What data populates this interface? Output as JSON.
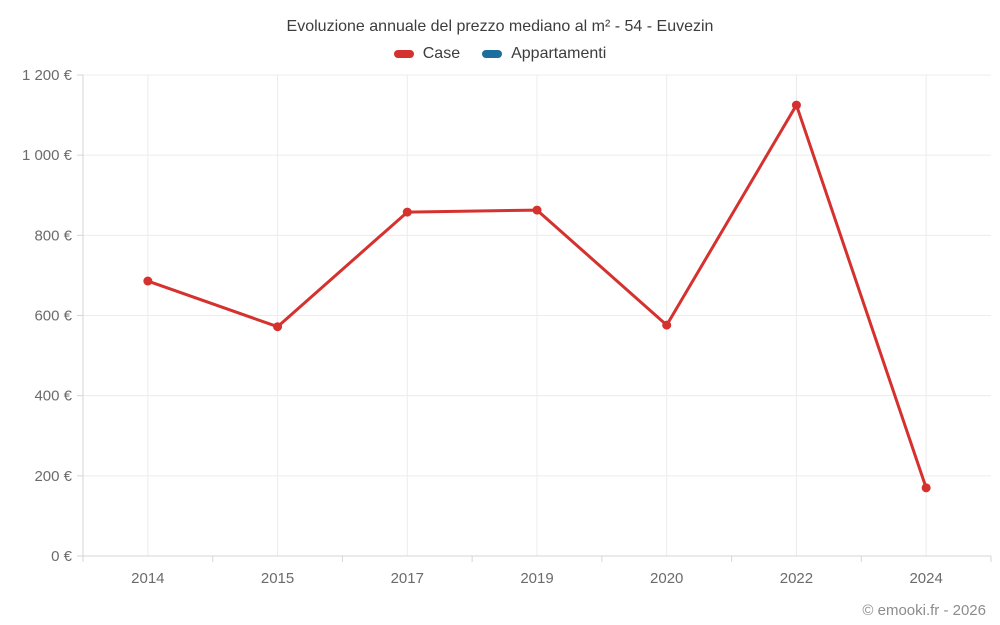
{
  "chart_data": {
    "type": "line",
    "title": "Evoluzione annuale del prezzo mediano al m² - 54 - Euvezin",
    "categories": [
      "2014",
      "2015",
      "2017",
      "2019",
      "2020",
      "2022",
      "2024"
    ],
    "series": [
      {
        "name": "Case",
        "color": "#d5312e",
        "values": [
          686,
          572,
          858,
          863,
          576,
          1125,
          170
        ]
      },
      {
        "name": "Appartamenti",
        "color": "#1c6e9c",
        "values": []
      }
    ],
    "xlabel": "",
    "ylabel": "",
    "ylim": [
      0,
      1200
    ],
    "y_tick_step": 200,
    "y_tick_labels": [
      "0 €",
      "200 €",
      "400 €",
      "600 €",
      "800 €",
      "1 000 €",
      "1 200 €"
    ],
    "grid": true,
    "legend_position": "top",
    "marker": "circle"
  },
  "footer": {
    "text": "© emooki.fr - 2026"
  },
  "colors": {
    "grid": "#ececec",
    "axis": "#d4d4d4",
    "tick": "#d6d6d6",
    "axis_label": "#6b6b6b",
    "title_text": "#3d3d3d",
    "footer_text": "#8c8c8c"
  }
}
